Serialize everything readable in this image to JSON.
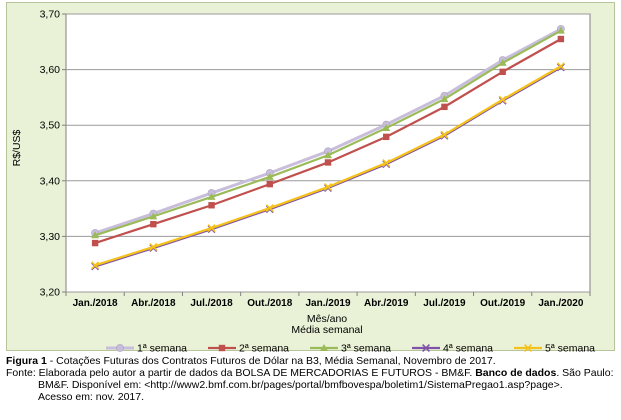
{
  "chart_data": {
    "type": "line",
    "categories": [
      "Jan./2018",
      "Abr./2018",
      "Jul./2018",
      "Out./2018",
      "Jan./2019",
      "Abr./2019",
      "Jul./2019",
      "Out./2019",
      "Jan./2020"
    ],
    "ylabel": "R$/US$",
    "xlabel": "Mês/ano",
    "subtitle": "Média semanal",
    "ylim": [
      3.2,
      3.7
    ],
    "yticks": [
      "3,20",
      "3,30",
      "3,40",
      "3,50",
      "3,60",
      "3,70"
    ],
    "grid": "horizontal",
    "legend": "bottom",
    "series": [
      {
        "name": "1ª semana",
        "color": "#c8bedc",
        "values": [
          3.306,
          3.341,
          3.378,
          3.414,
          3.453,
          3.501,
          3.553,
          3.617,
          3.673
        ]
      },
      {
        "name": "2ª semana",
        "color": "#c0504d",
        "values": [
          3.288,
          3.322,
          3.356,
          3.394,
          3.433,
          3.479,
          3.533,
          3.596,
          3.655
        ]
      },
      {
        "name": "3ª semana",
        "color": "#9bbb59",
        "values": [
          3.302,
          3.336,
          3.371,
          3.407,
          3.446,
          3.495,
          3.547,
          3.612,
          3.67
        ]
      },
      {
        "name": "4ª semana",
        "color": "#7f53a8",
        "values": [
          3.246,
          3.279,
          3.313,
          3.349,
          3.387,
          3.43,
          3.481,
          3.544,
          3.604
        ]
      },
      {
        "name": "5ª semana",
        "color": "#f5c21b",
        "values": [
          3.248,
          3.281,
          3.315,
          3.351,
          3.389,
          3.432,
          3.483,
          3.546,
          3.606
        ]
      }
    ]
  },
  "caption": {
    "figure_label": "Figura 1",
    "figure_text": " - Cotações Futuras dos Contratos Futuros de Dólar na B3, Média Semanal, Novembro de 2017.",
    "source_line1_a": "Fonte: Elaborada pelo autor a partir de dados da BOLSA DE MERCADORIAS E FUTUROS - BM&F. ",
    "source_line1_b": "Banco de dados",
    "source_line1_c": ". São Paulo:",
    "source_line2": "BM&F. Disponível em: <http://www2.bmf.com.br/pages/portal/bmfbovespa/boletim1/SistemaPregao1.asp?page>.",
    "source_line3": "Acesso em: nov. 2017."
  }
}
